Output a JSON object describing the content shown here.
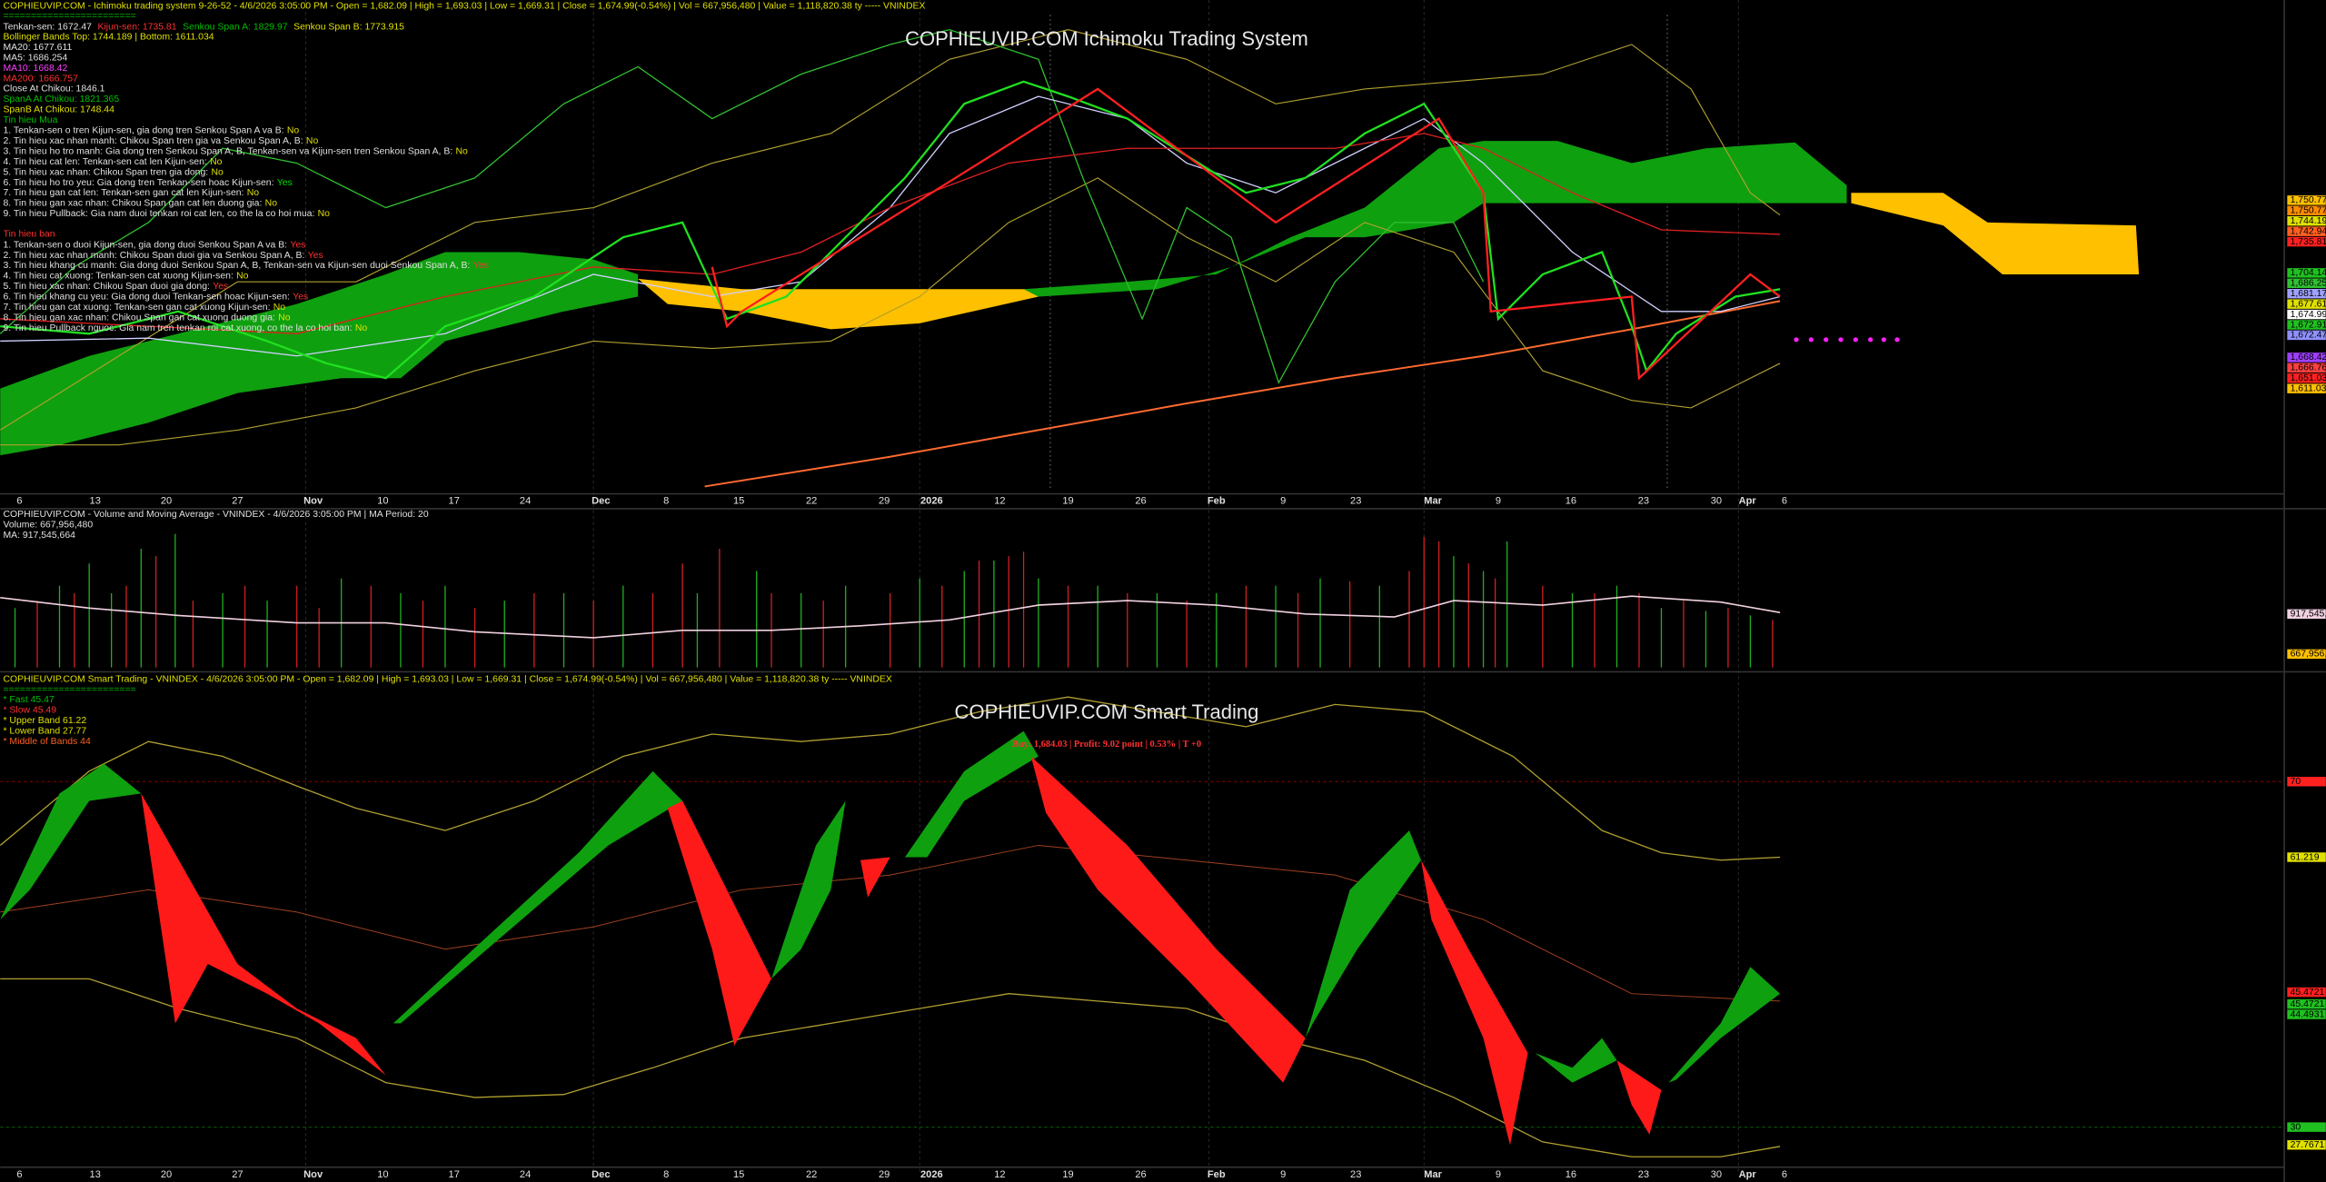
{
  "panel1": {
    "header": "COPHIEUVIP.COM - Ichimoku trading system 9-26-52 - 4/6/2026 3:05:00 PM - Open = 1,682.09 | High = 1,693.03 | Low = 1,669.31 | Close = 1,674.99(-0.54%) | Vol = 667,956,480 | Value = 1,118,820.38 ty ----- VNINDEX",
    "divider": "========================",
    "title": "COPHIEUVIP.COM Ichimoku Trading System",
    "ichimoku": [
      "Tenkan-sen: 1672.47",
      "Kijun-sen: 1735.81",
      "Senkou Span A: 1829.97",
      "Senkou Span B: 1773.915"
    ],
    "lines": [
      "Bollinger Bands Top: 1744.189 | Bottom: 1611.034",
      "MA20: 1677.611",
      "MA5: 1686.254",
      "MA10: 1668.42",
      "MA200: 1666.757",
      "Close At Chikou: 1846.1",
      "SpanA At Chikou: 1821.365",
      "SpanB At Chikou: 1748.44"
    ],
    "buy_title": "Tin hieu Mua",
    "buy_signals": [
      {
        "text": "1. Tenkan-sen o tren Kijun-sen, gia dong tren Senkou Span A va B:",
        "answer": "No"
      },
      {
        "text": "2. Tin hieu xac nhan manh: Chikou Span tren gia va Senkou Span A, B:",
        "answer": "No"
      },
      {
        "text": "3. Tin hieu ho tro manh: Gia dong tren Senkou Span A, B, Tenkan-sen va Kijun-sen tren Senkou Span A, B:",
        "answer": "No"
      },
      {
        "text": "4. Tin hieu cat len: Tenkan-sen cat len Kijun-sen:",
        "answer": "No"
      },
      {
        "text": "5. Tin hieu xac nhan: Chikou Span tren gia dong:",
        "answer": "No"
      },
      {
        "text": "6. Tin hieu ho tro yeu: Gia dong tren Tenkan-sen hoac Kijun-sen:",
        "answer": "Yes"
      },
      {
        "text": "7. Tin hieu gan cat len: Tenkan-sen gan cat len Kijun-sen:",
        "answer": "No"
      },
      {
        "text": "8. Tin hieu gan xac nhan: Chikou Span gan cat len duong gia:",
        "answer": "No"
      },
      {
        "text": "9. Tin hieu Pullback: Gia nam duoi tenkan roi cat len, co the la co hoi mua:",
        "answer": "No"
      }
    ],
    "sell_title": "Tin hieu ban",
    "sell_signals": [
      {
        "text": "1. Tenkan-sen o duoi Kijun-sen, gia dong duoi Senkou Span A va B:",
        "answer": "Yes"
      },
      {
        "text": "2. Tin hieu xac nhan manh: Chikou Span duoi gia va Senkou Span A, B:",
        "answer": "Yes"
      },
      {
        "text": "3. Tin hieu khang cu manh: Gia dong duoi Senkou Span A, B, Tenkan-sen va Kijun-sen duoi Senkou Span A, B:",
        "answer": "Yes"
      },
      {
        "text": "4. Tin hieu cat xuong: Tenkan-sen cat xuong Kijun-sen:",
        "answer": "No"
      },
      {
        "text": "5. Tin hieu xac nhan: Chikou Span duoi gia dong:",
        "answer": "Yes"
      },
      {
        "text": "6. Tin hieu khang cu yeu: Gia dong duoi Tenkan-sen hoac Kijun-sen:",
        "answer": "Yes"
      },
      {
        "text": "7. Tin hieu gan cat xuong: Tenkan-sen gan cat xuong Kijun-sen:",
        "answer": "No"
      },
      {
        "text": "8. Tin hieu gan xac nhan: Chikou Span gan cat xuong duong gia:",
        "answer": "No"
      },
      {
        "text": "9. Tin hieu Pullback nguoc: Gia nam tren tenkan roi cat xuong, co the la co hoi ban:",
        "answer": "No"
      }
    ],
    "price_labels": [
      "1,750.77",
      "1,750.77",
      "1,744.19",
      "1,742.94",
      "1,735.81",
      "1,704.14",
      "1,686.25",
      "1,681.17",
      "1,677.61",
      "1,674.99",
      "1,672.91",
      "1,672.47",
      "1,668.42",
      "1,666.76",
      "1,651.03",
      "1,611.03"
    ]
  },
  "dates": [
    "6",
    "13",
    "20",
    "27",
    "Nov",
    "10",
    "17",
    "24",
    "Dec",
    "8",
    "15",
    "22",
    "29",
    "2026",
    "12",
    "19",
    "26",
    "Feb",
    "9",
    "23",
    "Mar",
    "9",
    "16",
    "23",
    "30",
    "Apr",
    "6"
  ],
  "panel2": {
    "header": "COPHIEUVIP.COM - Volume and Moving Average - VNINDEX - 4/6/2026 3:05:00 PM | MA Period: 20",
    "volume": "Volume: 667,956,480",
    "ma": "MA: 917,545,664",
    "price_labels": [
      "917,545,6",
      "667,956,4"
    ]
  },
  "panel3": {
    "header": "COPHIEUVIP.COM Smart Trading - VNINDEX - 4/6/2026 3:05:00 PM - Open = 1,682.09 | High = 1,693.03 | Low = 1,669.31 | Close = 1,674.99(-0.54%) | Vol = 667,956,480 | Value = 1,118,820.38 ty ----- VNINDEX",
    "divider": "========================",
    "title": "COPHIEUVIP.COM Smart Trading",
    "trade": "Buy: 1,684.03 | Profit: 9.02 point | 0.53% | T +0",
    "legend": [
      "* Fast    45.47",
      "* Slow    45.49",
      "* Upper Band    61.22",
      "* Lower Band    27.77",
      "* Middle of Bands    44"
    ],
    "price_labels": [
      "70",
      "61.219",
      "45.4721",
      "45.4721",
      "44.4931",
      "30",
      "27.7671"
    ]
  }
}
